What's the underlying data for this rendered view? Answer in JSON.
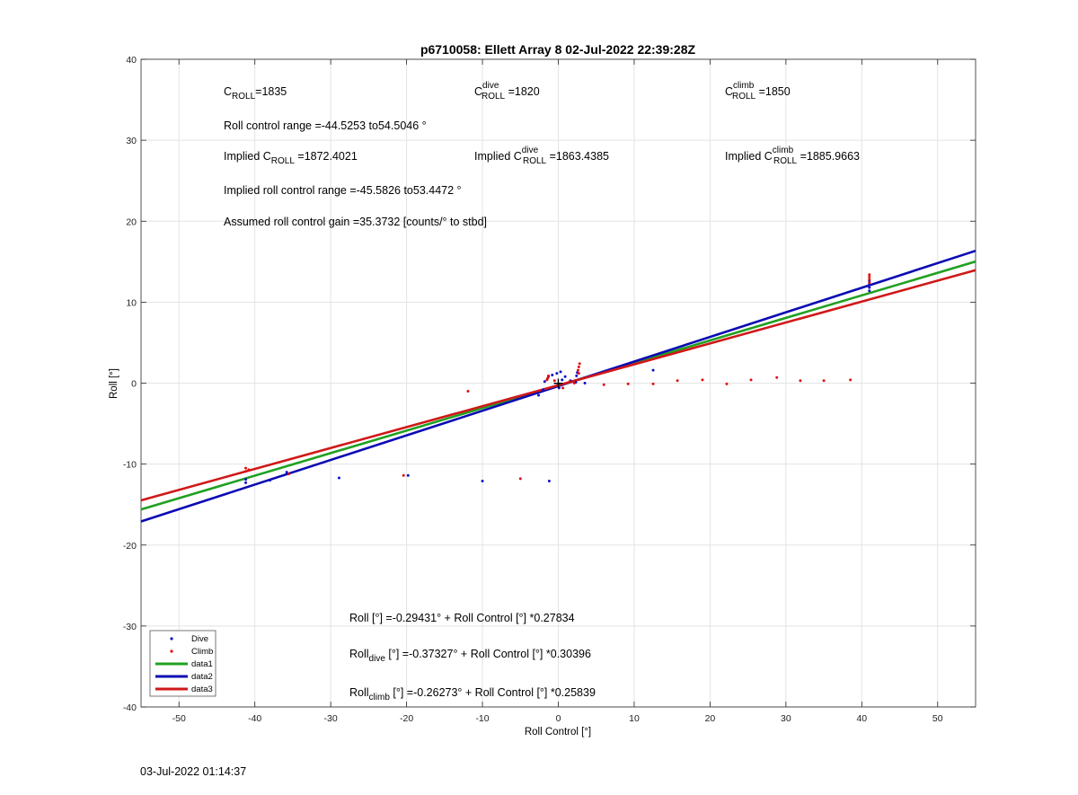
{
  "chart_data": {
    "type": "scatter",
    "title": "p6710058: Ellett Array 8 02-Jul-2022 22:39:28Z",
    "xlabel": "Roll Control [°]",
    "ylabel": "Roll [°]",
    "xlim": [
      -55,
      55
    ],
    "ylim": [
      -40,
      40
    ],
    "xticks": [
      -50,
      -40,
      -30,
      -20,
      -10,
      0,
      10,
      20,
      30,
      40,
      50
    ],
    "yticks": [
      -40,
      -30,
      -20,
      -10,
      0,
      10,
      20,
      30,
      40
    ],
    "grid": true,
    "legend_position": "bottom-left",
    "series": [
      {
        "name": "Dive",
        "kind": "points",
        "color": "#1010c8",
        "points": [
          [
            -41.2,
            -11.9
          ],
          [
            -41.2,
            -12.3
          ],
          [
            -38,
            -12
          ],
          [
            -35.8,
            -11
          ],
          [
            -28.9,
            -11.7
          ],
          [
            -19.8,
            -11.4
          ],
          [
            -10,
            -12.1
          ],
          [
            -1.2,
            -12.1
          ],
          [
            -2.6,
            -1.5
          ],
          [
            -2,
            -0.8
          ],
          [
            -1.8,
            0.2
          ],
          [
            -1.3,
            0.8
          ],
          [
            -0.8,
            1.0
          ],
          [
            -0.2,
            1.2
          ],
          [
            0.3,
            1.4
          ],
          [
            0.9,
            0.8
          ],
          [
            0.5,
            0.4
          ],
          [
            0.1,
            -0.6
          ],
          [
            1.6,
            0.3
          ],
          [
            2.4,
            0.9
          ],
          [
            2.5,
            1.3
          ],
          [
            2.3,
            0.1
          ],
          [
            3.5,
            0
          ],
          [
            12.5,
            1.6
          ],
          [
            41,
            11.4
          ],
          [
            41,
            11.8
          ],
          [
            41,
            12.2
          ],
          [
            41,
            12.6
          ]
        ]
      },
      {
        "name": "Climb",
        "kind": "points",
        "color": "#e01010",
        "points": [
          [
            -41.2,
            -10.5
          ],
          [
            -41.2,
            -10.9
          ],
          [
            -40.8,
            -10.7
          ],
          [
            -35.5,
            -11.2
          ],
          [
            -20.4,
            -11.4
          ],
          [
            -11.9,
            -1.0
          ],
          [
            -5,
            -11.8
          ],
          [
            -1.5,
            0.4
          ],
          [
            -1.3,
            0.9
          ],
          [
            -1.4,
            0.6
          ],
          [
            -0.5,
            0.3
          ],
          [
            0.6,
            -0.6
          ],
          [
            1.5,
            0.2
          ],
          [
            2.1,
            0.0
          ],
          [
            2.6,
            1.6
          ],
          [
            2.7,
            2.0
          ],
          [
            2.8,
            2.4
          ],
          [
            2.7,
            1.2
          ],
          [
            6,
            -0.2
          ],
          [
            9.2,
            -0.1
          ],
          [
            12.5,
            -0.1
          ],
          [
            15.7,
            0.3
          ],
          [
            19,
            0.4
          ],
          [
            22.2,
            -0.1
          ],
          [
            25.4,
            0.4
          ],
          [
            28.8,
            0.7
          ],
          [
            31.9,
            0.3
          ],
          [
            35,
            0.3
          ],
          [
            38.5,
            0.4
          ],
          [
            41,
            12.4
          ],
          [
            41,
            12.8
          ],
          [
            41,
            13.1
          ],
          [
            41,
            13.4
          ]
        ]
      },
      {
        "name": "data1",
        "kind": "line",
        "color": "#20a020",
        "intercept": -0.29431,
        "slope": 0.27834
      },
      {
        "name": "data2",
        "kind": "line",
        "color": "#0a0ab4",
        "intercept": -0.37327,
        "slope": 0.30396
      },
      {
        "name": "data3",
        "kind": "line",
        "color": "#d01818",
        "intercept": -0.26273,
        "slope": 0.25839
      }
    ],
    "marker": {
      "label": "+",
      "x": 0,
      "y": 0
    }
  },
  "annotations": {
    "c_roll": {
      "pre": "C",
      "sub": "ROLL",
      "post": "=1835"
    },
    "c_roll_dive": {
      "pre": "C",
      "sup": "dive",
      "sub": "ROLL",
      "post": " =1820"
    },
    "c_roll_climb": {
      "pre": "C",
      "sup": "climb",
      "sub": "ROLL",
      "post": " =1850"
    },
    "roll_range": "Roll control range =-44.5253 to54.5046 °",
    "implied_c_roll": {
      "pre": "Implied C",
      "sub": "ROLL",
      "post": " =1872.4021"
    },
    "implied_c_roll_dive": {
      "pre": "Implied C",
      "sup": "dive",
      "sub": "ROLL",
      "post": " =1863.4385"
    },
    "implied_c_roll_climb": {
      "pre": "Implied C",
      "sup": "climb",
      "sub": "ROLL",
      "post": " =1885.9663"
    },
    "implied_range": "Implied roll control range =-45.5826 to53.4472 °",
    "gain": "Assumed roll control gain =35.3732 [counts/° to stbd]",
    "fit_all": "Roll [°] =-0.29431° + Roll Control [°] *0.27834",
    "fit_dive": {
      "pre": "Roll",
      "sub": "dive",
      "post": " [°] =-0.37327° + Roll Control [°] *0.30396"
    },
    "fit_climb": {
      "pre": "Roll",
      "sub": "climb",
      "post": " [°] =-0.26273° + Roll Control [°] *0.25839"
    }
  },
  "footer": {
    "timestamp": "03-Jul-2022 01:14:37"
  }
}
